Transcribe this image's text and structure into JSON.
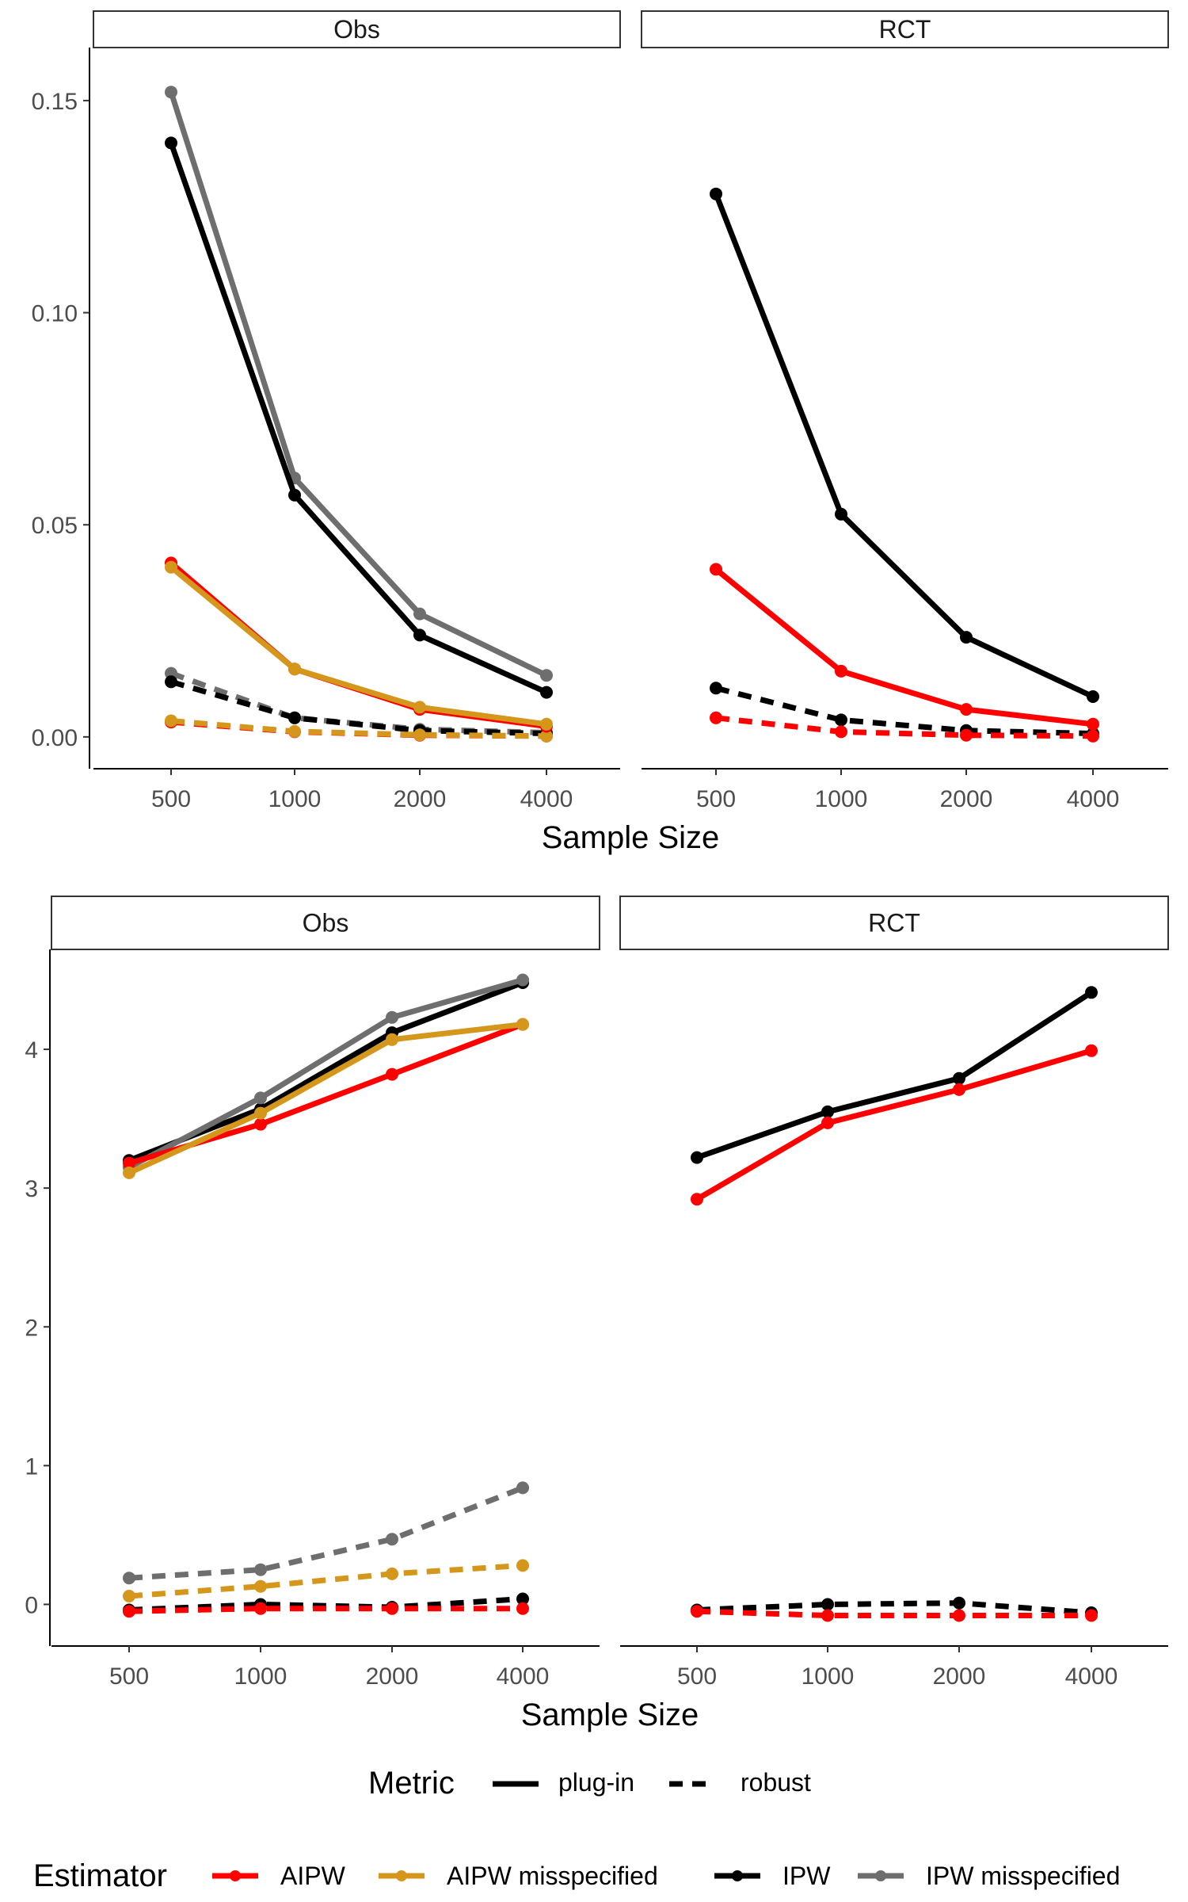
{
  "colors": {
    "AIPW": "#ff0000",
    "AIPW misspecified": "#d4971c",
    "IPW": "#000000",
    "IPW misspecified": "#6e6e6e",
    "axis": "#000000",
    "tick_text": "#4d4d4d"
  },
  "legend": {
    "metric_title": "Metric",
    "metric_items": [
      "plug-in",
      "robust"
    ],
    "estimator_title": "Estimator",
    "estimator_items": [
      "AIPW",
      "AIPW misspecified",
      "IPW",
      "IPW misspecified"
    ]
  },
  "chart_data": [
    {
      "type": "line",
      "xlabel": "Sample Size",
      "ylabel": "",
      "ylim": [
        -0.0075,
        0.1625
      ],
      "yticks": [
        0.0,
        0.05,
        0.1,
        0.15
      ],
      "ytick_labels": [
        "0.00",
        "0.05",
        "0.10",
        "0.15"
      ],
      "categories": [
        "500",
        "1000",
        "2000",
        "4000"
      ],
      "panels": [
        {
          "strip": "Obs",
          "series": [
            {
              "estimator": "IPW misspecified",
              "metric": "plug-in",
              "values": [
                0.152,
                0.061,
                0.029,
                0.0145
              ]
            },
            {
              "estimator": "IPW",
              "metric": "plug-in",
              "values": [
                0.14,
                0.057,
                0.024,
                0.0105
              ]
            },
            {
              "estimator": "AIPW",
              "metric": "plug-in",
              "values": [
                0.041,
                0.016,
                0.0065,
                0.0025
              ]
            },
            {
              "estimator": "AIPW misspecified",
              "metric": "plug-in",
              "values": [
                0.04,
                0.016,
                0.007,
                0.003
              ]
            },
            {
              "estimator": "IPW misspecified",
              "metric": "robust",
              "values": [
                0.015,
                0.0045,
                0.0018,
                0.001
              ]
            },
            {
              "estimator": "IPW",
              "metric": "robust",
              "values": [
                0.013,
                0.0045,
                0.0015,
                0.0008
              ]
            },
            {
              "estimator": "AIPW",
              "metric": "robust",
              "values": [
                0.0035,
                0.0012,
                0.0004,
                0.0002
              ]
            },
            {
              "estimator": "AIPW misspecified",
              "metric": "robust",
              "values": [
                0.0038,
                0.0013,
                0.0005,
                0.0002
              ]
            }
          ]
        },
        {
          "strip": "RCT",
          "series": [
            {
              "estimator": "IPW",
              "metric": "plug-in",
              "values": [
                0.128,
                0.0525,
                0.0235,
                0.0095
              ]
            },
            {
              "estimator": "AIPW",
              "metric": "plug-in",
              "values": [
                0.0395,
                0.0155,
                0.0065,
                0.003
              ]
            },
            {
              "estimator": "IPW",
              "metric": "robust",
              "values": [
                0.0115,
                0.004,
                0.0015,
                0.0008
              ]
            },
            {
              "estimator": "AIPW",
              "metric": "robust",
              "values": [
                0.0045,
                0.0012,
                0.0004,
                0.0002
              ]
            }
          ]
        }
      ]
    },
    {
      "type": "line",
      "xlabel": "Sample Size",
      "ylabel": "",
      "ylim": [
        -0.3,
        4.72
      ],
      "yticks": [
        0,
        1,
        2,
        3,
        4
      ],
      "ytick_labels": [
        "0",
        "1",
        "2",
        "3",
        "4"
      ],
      "categories": [
        "500",
        "1000",
        "2000",
        "4000"
      ],
      "panels": [
        {
          "strip": "Obs",
          "series": [
            {
              "estimator": "IPW",
              "metric": "plug-in",
              "values": [
                3.2,
                3.57,
                4.12,
                4.48
              ]
            },
            {
              "estimator": "IPW misspecified",
              "metric": "plug-in",
              "values": [
                3.15,
                3.65,
                4.23,
                4.5
              ]
            },
            {
              "estimator": "AIPW",
              "metric": "plug-in",
              "values": [
                3.18,
                3.46,
                3.82,
                4.18
              ]
            },
            {
              "estimator": "AIPW misspecified",
              "metric": "plug-in",
              "values": [
                3.11,
                3.54,
                4.07,
                4.18
              ]
            },
            {
              "estimator": "IPW misspecified",
              "metric": "robust",
              "values": [
                0.19,
                0.25,
                0.47,
                0.84
              ]
            },
            {
              "estimator": "AIPW misspecified",
              "metric": "robust",
              "values": [
                0.06,
                0.13,
                0.22,
                0.28
              ]
            },
            {
              "estimator": "IPW",
              "metric": "robust",
              "values": [
                -0.04,
                0.0,
                -0.02,
                0.04
              ]
            },
            {
              "estimator": "AIPW",
              "metric": "robust",
              "values": [
                -0.05,
                -0.03,
                -0.03,
                -0.03
              ]
            }
          ]
        },
        {
          "strip": "RCT",
          "series": [
            {
              "estimator": "IPW",
              "metric": "plug-in",
              "values": [
                3.22,
                3.55,
                3.79,
                4.41
              ]
            },
            {
              "estimator": "AIPW",
              "metric": "plug-in",
              "values": [
                2.92,
                3.47,
                3.71,
                3.99
              ]
            },
            {
              "estimator": "IPW",
              "metric": "robust",
              "values": [
                -0.04,
                0.0,
                0.01,
                -0.06
              ]
            },
            {
              "estimator": "AIPW",
              "metric": "robust",
              "values": [
                -0.05,
                -0.08,
                -0.08,
                -0.08
              ]
            }
          ]
        }
      ]
    }
  ]
}
